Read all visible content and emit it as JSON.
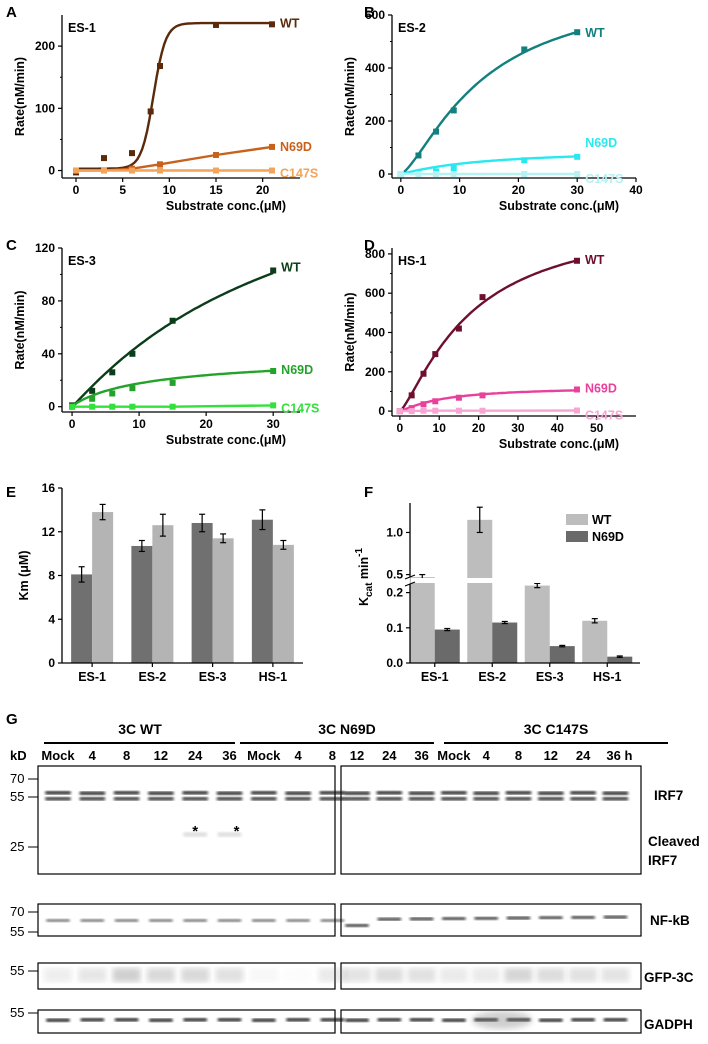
{
  "figure": {
    "panel_letters": [
      "A",
      "B",
      "C",
      "D",
      "E",
      "F",
      "G"
    ]
  },
  "chart_data": [
    {
      "id": "A",
      "type": "line",
      "inset": "ES-1",
      "xlabel": "Substrate conc.(μM)",
      "ylabel": "Rate(nM/min)",
      "xlim": [
        -1.5,
        24
      ],
      "ylim": [
        -12,
        250
      ],
      "xticks": [
        0,
        5,
        10,
        15,
        20
      ],
      "yticks": [
        0,
        100,
        200
      ],
      "series": [
        {
          "name": "WT",
          "color": "#5a2a0a",
          "x": [
            0,
            3,
            6,
            8,
            9,
            15,
            21
          ],
          "y": [
            -3,
            20,
            28,
            95,
            168,
            234,
            235
          ],
          "curve": "sigmoid",
          "params": [
            237,
            8.3,
            0.65,
            3
          ]
        },
        {
          "name": "N69D",
          "color": "#c7621d",
          "x": [
            0,
            3,
            6,
            9,
            15,
            21
          ],
          "y": [
            0,
            0,
            3,
            10,
            25,
            38
          ],
          "curve": "linear"
        },
        {
          "name": "C147S",
          "color": "#f2a45a",
          "x": [
            0,
            3,
            6,
            9,
            15,
            21
          ],
          "y": [
            0,
            0,
            0,
            0,
            0,
            0
          ],
          "curve": "linear"
        }
      ]
    },
    {
      "id": "B",
      "type": "line",
      "inset": "ES-2",
      "xlabel": "Substrate conc.(μM)",
      "ylabel": "Rate(nM/min)",
      "xlim": [
        -1.5,
        40
      ],
      "ylim": [
        -15,
        600
      ],
      "xticks": [
        0,
        10,
        20,
        30,
        40
      ],
      "yticks": [
        0,
        200,
        400,
        600
      ],
      "series": [
        {
          "name": "WT",
          "color": "#137f7f",
          "x": [
            0,
            3,
            6,
            9,
            21,
            30
          ],
          "y": [
            0,
            70,
            160,
            240,
            470,
            535
          ],
          "curve": "hill",
          "params": [
            720,
            14,
            1.4
          ]
        },
        {
          "name": "N69D",
          "color": "#29e8ef",
          "x": [
            0,
            3,
            6,
            9,
            21,
            30
          ],
          "y": [
            0,
            5,
            10,
            22,
            52,
            65
          ],
          "curve": "hill",
          "params": [
            95,
            14,
            1.1
          ]
        },
        {
          "name": "C147S",
          "color": "#b6f1f3",
          "x": [
            0,
            3,
            6,
            9,
            21,
            30
          ],
          "y": [
            0,
            0,
            0,
            0,
            0,
            0
          ],
          "curve": "linear"
        }
      ]
    },
    {
      "id": "C",
      "type": "line",
      "inset": "ES-3",
      "xlabel": "Substrate conc.(μM)",
      "ylabel": "Rate(nM/min)",
      "xlim": [
        -1.5,
        34
      ],
      "ylim": [
        -4,
        120
      ],
      "xticks": [
        0,
        10,
        20,
        30
      ],
      "yticks": [
        0,
        40,
        80,
        120
      ],
      "series": [
        {
          "name": "WT",
          "color": "#0c3d1a",
          "x": [
            0,
            3,
            6,
            9,
            15,
            30
          ],
          "y": [
            1,
            12,
            26,
            40,
            65,
            103
          ],
          "curve": "hill",
          "params": [
            220,
            35,
            1.05
          ]
        },
        {
          "name": "N69D",
          "color": "#24a32a",
          "x": [
            0,
            3,
            6,
            9,
            15,
            30
          ],
          "y": [
            0,
            6,
            10,
            14,
            18,
            27
          ],
          "curve": "hill",
          "params": [
            40,
            13,
            0.9
          ]
        },
        {
          "name": "C147S",
          "color": "#33e03c",
          "x": [
            0,
            3,
            6,
            9,
            15,
            30
          ],
          "y": [
            0,
            0,
            0,
            0,
            0,
            1
          ],
          "curve": "linear"
        }
      ]
    },
    {
      "id": "D",
      "type": "line",
      "inset": "HS-1",
      "xlabel": "Substrate conc.(μM)",
      "ylabel": "Rate(nM/min)",
      "xlim": [
        -2,
        60
      ],
      "ylim": [
        -25,
        830
      ],
      "xticks": [
        0,
        10,
        20,
        30,
        40,
        50
      ],
      "yticks": [
        0,
        200,
        400,
        600,
        800
      ],
      "series": [
        {
          "name": "WT",
          "color": "#6e0f30",
          "x": [
            0,
            3,
            6,
            9,
            15,
            21,
            45
          ],
          "y": [
            0,
            80,
            190,
            290,
            420,
            580,
            765
          ],
          "curve": "hill",
          "params": [
            1000,
            18,
            1.3
          ]
        },
        {
          "name": "N69D",
          "color": "#e8419b",
          "x": [
            0,
            3,
            6,
            9,
            15,
            21,
            45
          ],
          "y": [
            0,
            15,
            35,
            50,
            68,
            80,
            110
          ],
          "curve": "hill",
          "params": [
            125,
            11,
            1.2
          ]
        },
        {
          "name": "C147S",
          "color": "#f7a6d3",
          "x": [
            0,
            3,
            6,
            9,
            15,
            21,
            45
          ],
          "y": [
            0,
            0,
            2,
            2,
            2,
            2,
            3
          ],
          "curve": "linear"
        }
      ]
    },
    {
      "id": "E",
      "type": "bar",
      "xlabel": "",
      "ylabel": "Km (μM)",
      "ylim": [
        0,
        16
      ],
      "yticks": [
        0,
        4,
        8,
        12,
        16
      ],
      "categories": [
        "ES-1",
        "ES-2",
        "ES-3",
        "HS-1"
      ],
      "series": [
        {
          "name": "WT",
          "color": "#707070",
          "values": [
            8.1,
            10.7,
            12.8,
            13.1
          ],
          "errors": [
            0.7,
            0.5,
            0.8,
            0.9
          ]
        },
        {
          "name": "N69D",
          "color": "#b4b4b4",
          "values": [
            13.8,
            12.6,
            11.4,
            10.8
          ],
          "errors": [
            0.7,
            1.0,
            0.4,
            0.4
          ]
        }
      ]
    },
    {
      "id": "F",
      "type": "bar",
      "xlabel": "",
      "ylabel_main": "K",
      "ylabel_sub": "cat",
      "ylabel_tail": " min",
      "ylabel_sup": "-1",
      "axis_break": true,
      "yticks": [
        0.0,
        0.1,
        0.2,
        0.5,
        1.0
      ],
      "categories": [
        "ES-1",
        "ES-2",
        "ES-3",
        "HS-1"
      ],
      "legend": [
        "WT",
        "N69D"
      ],
      "series": [
        {
          "name": "WT",
          "color": "#bdbdbd",
          "values": [
            0.47,
            1.15,
            0.22,
            0.12
          ],
          "errors": [
            0.03,
            0.15,
            0.006,
            0.006
          ]
        },
        {
          "name": "N69D",
          "color": "#6a6a6a",
          "values": [
            0.095,
            0.115,
            0.048,
            0.018
          ],
          "errors": [
            0.003,
            0.003,
            0.002,
            0.002
          ]
        }
      ]
    }
  ],
  "western": {
    "groups": [
      "3C WT",
      "3C N69D",
      "3C C147S"
    ],
    "kd": "kD",
    "lanes": [
      "Mock",
      "4",
      "8",
      "12",
      "24",
      "36",
      "Mock",
      "4",
      "8",
      "12",
      "24",
      "36",
      "Mock",
      "4",
      "8",
      "12",
      "24",
      "36 h"
    ],
    "mw_irf7": [
      "70",
      "55",
      "25"
    ],
    "mw_nfkb": [
      "70",
      "55"
    ],
    "mw_gfp": [
      "55"
    ],
    "mw_gapdh": [
      "55"
    ],
    "labels": {
      "irf7": "IRF7",
      "cleaved_1": "Cleaved",
      "cleaved_2": "IRF7",
      "nfkb": "NF-kB",
      "gfp": "GFP-3C",
      "gapdh": "GADPH"
    },
    "asterisk": "*"
  }
}
